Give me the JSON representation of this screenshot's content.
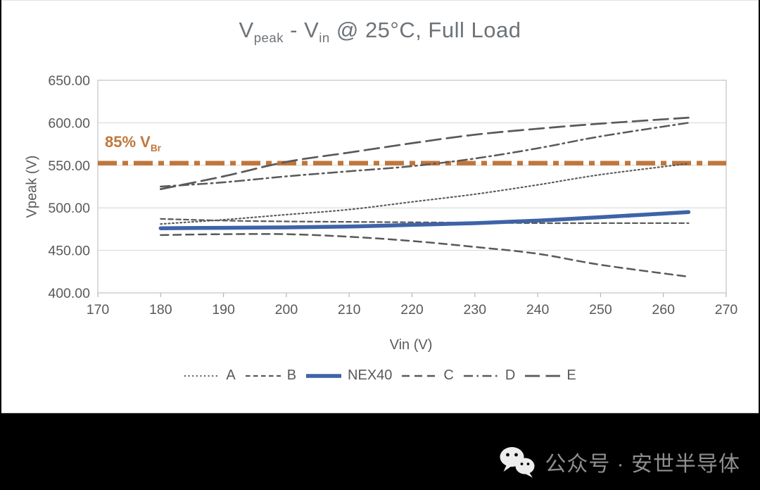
{
  "title_segments": [
    {
      "text": "V",
      "sub": false
    },
    {
      "text": "peak",
      "sub": true
    },
    {
      "text": " - V",
      "sub": false
    },
    {
      "text": "in",
      "sub": true
    },
    {
      "text": " @ 25°C, Full Load",
      "sub": false
    }
  ],
  "watermark": {
    "text": "公众号 · 安世半导体",
    "icon": "wechat-icon"
  },
  "chart_data": {
    "type": "line",
    "title": "Vpeak - Vin @ 25°C, Full Load",
    "xlabel": "Vin (V)",
    "ylabel": "Vpeak (V)",
    "xlim": [
      170,
      270
    ],
    "ylim": [
      400,
      650
    ],
    "grid": true,
    "legend_position": "bottom",
    "x_ticks": [
      170,
      180,
      190,
      200,
      210,
      220,
      230,
      240,
      250,
      260,
      270
    ],
    "y_ticks": [
      650,
      600,
      550,
      500,
      450,
      400
    ],
    "y_tick_labels": [
      "650.00",
      "600.00",
      "550.00",
      "500.00",
      "450.00",
      "400.00"
    ],
    "x": [
      180,
      190,
      200,
      210,
      220,
      230,
      240,
      250,
      264
    ],
    "series": [
      {
        "name": "A",
        "values": [
          481,
          486,
          492,
          498,
          507,
          516,
          527,
          539,
          552
        ],
        "color": "#595959",
        "dash": "dotted",
        "width": 2.1
      },
      {
        "name": "B",
        "values": [
          487,
          485,
          484,
          483.5,
          483,
          482.5,
          482,
          482,
          482
        ],
        "color": "#595959",
        "dash": "dash-small",
        "width": 2.2
      },
      {
        "name": "NEX40",
        "values": [
          476,
          476.5,
          477,
          478,
          480,
          482,
          485,
          489,
          495
        ],
        "color": "#3E63A8",
        "dash": "solid",
        "width": 5.5
      },
      {
        "name": "C",
        "values": [
          468,
          469,
          469,
          466,
          461,
          454,
          446,
          433,
          419
        ],
        "color": "#595959",
        "dash": "dash-med",
        "width": 2.5
      },
      {
        "name": "D",
        "values": [
          525,
          530,
          537,
          543,
          549,
          558,
          570,
          584,
          600
        ],
        "color": "#595959",
        "dash": "dash-dot",
        "width": 2.5
      },
      {
        "name": "E",
        "values": [
          522,
          537,
          554,
          565,
          576,
          586,
          593,
          599,
          606
        ],
        "color": "#595959",
        "dash": "dash-long",
        "width": 2.7
      }
    ],
    "annotation": {
      "label_pre": "85% V",
      "label_sub": "Br",
      "value": 552.5,
      "color": "#C0773C",
      "style": "thick-dash-dot"
    }
  }
}
